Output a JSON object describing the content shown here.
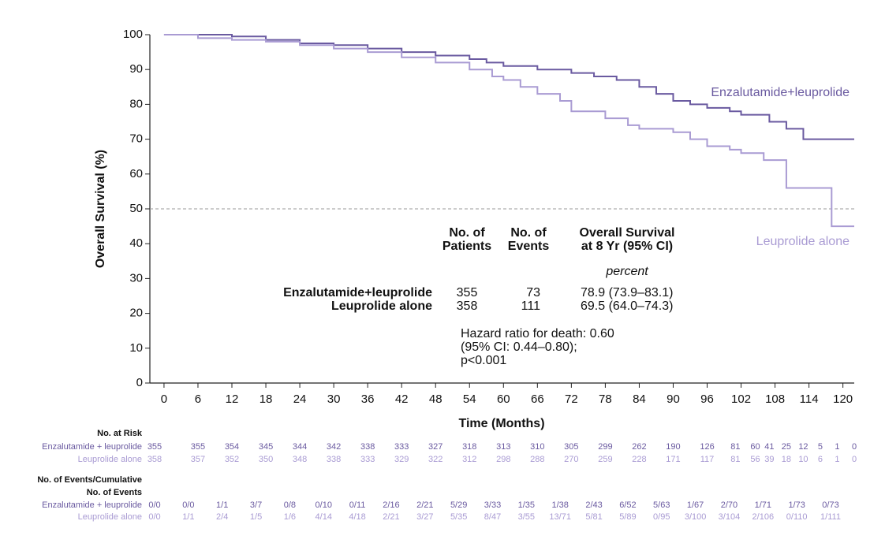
{
  "chart_data": {
    "type": "line",
    "step": true,
    "y_label": "Overall Survival (%)",
    "x_label": "Time (Months)",
    "xlim": [
      -2.5,
      122
    ],
    "ylim": [
      0,
      100
    ],
    "xticks": [
      0,
      6,
      12,
      18,
      24,
      30,
      36,
      42,
      48,
      54,
      60,
      66,
      72,
      78,
      84,
      90,
      96,
      102,
      108,
      114,
      120
    ],
    "yticks": [
      0,
      10,
      20,
      30,
      40,
      50,
      60,
      70,
      80,
      90,
      100
    ],
    "reference_line": 50,
    "series": [
      {
        "name": "Enzalutamide+leuprolide",
        "color": "#6a5aa0",
        "x": [
          0,
          12,
          18,
          24,
          30,
          36,
          42,
          48,
          54,
          57,
          60,
          66,
          72,
          76,
          80,
          84,
          87,
          90,
          93,
          96,
          100,
          102,
          107,
          110,
          113,
          122
        ],
        "values": [
          100,
          99.5,
          98.5,
          97.5,
          97,
          96,
          95,
          94,
          93,
          92,
          91,
          90,
          89,
          88,
          87,
          85,
          83,
          81,
          80,
          79,
          78,
          77,
          75,
          73,
          70,
          70
        ]
      },
      {
        "name": "Leuprolide alone",
        "color": "#a99bd3",
        "x": [
          0,
          6,
          12,
          18,
          24,
          30,
          36,
          42,
          48,
          54,
          58,
          60,
          63,
          66,
          70,
          72,
          78,
          82,
          84,
          90,
          93,
          96,
          100,
          102,
          106,
          110,
          118,
          122
        ],
        "values": [
          100,
          99,
          98.5,
          98,
          97,
          96,
          95,
          93.5,
          92,
          90,
          88,
          87,
          85,
          83,
          81,
          78,
          76,
          74,
          73,
          72,
          70,
          68,
          67,
          66,
          64,
          56,
          45,
          45
        ]
      }
    ],
    "summary_table": {
      "headers": [
        [
          "No. of",
          "Patients"
        ],
        [
          "No. of",
          "Events"
        ],
        [
          "Overall Survival",
          "at 8 Yr (95% CI)"
        ]
      ],
      "unit": "percent",
      "rows": [
        [
          "Enzalutamide+leuprolide",
          355,
          73,
          "78.9 (73.9–83.1)"
        ],
        [
          "Leuprolide alone",
          358,
          111,
          "69.5 (64.0–74.3)"
        ]
      ]
    },
    "annotation": [
      "Hazard ratio for death: 0.60",
      "(95% CI: 0.44–0.80);",
      "p<0.001"
    ],
    "risk_table": {
      "title": "No. at Risk",
      "times": [
        0,
        6,
        12,
        18,
        24,
        30,
        36,
        42,
        48,
        54,
        60,
        66,
        72,
        78,
        84,
        90,
        96,
        101,
        104.5,
        107,
        110,
        113,
        116,
        119,
        122
      ],
      "rows": [
        {
          "label": "Enzalutamide + leuprolide",
          "color": "#6a5aa0",
          "values": [
            355,
            355,
            354,
            345,
            344,
            342,
            338,
            333,
            327,
            318,
            313,
            310,
            305,
            299,
            262,
            190,
            126,
            81,
            60,
            41,
            25,
            12,
            5,
            1,
            0
          ]
        },
        {
          "label": "Leuprolide alone",
          "color": "#a99bd3",
          "values": [
            358,
            357,
            352,
            350,
            348,
            338,
            333,
            329,
            322,
            312,
            298,
            288,
            270,
            259,
            228,
            171,
            117,
            81,
            56,
            39,
            18,
            10,
            6,
            1,
            0
          ]
        }
      ]
    },
    "events_table": {
      "title": [
        "No. of Events/Cumulative",
        "No. of Events"
      ],
      "rows": [
        {
          "label": "Enzalutamide + leuprolide",
          "color": "#6a5aa0",
          "values": [
            "0/0",
            "0/0",
            "1/1",
            "3/7",
            "0/8",
            "0/10",
            "0/11",
            "2/16",
            "2/21",
            "5/29",
            "3/33",
            "1/35",
            "1/38",
            "2/43",
            "6/52",
            "5/63",
            "1/67",
            "2/70",
            "1/71",
            "1/73",
            "0/73"
          ]
        },
        {
          "label": "Leuprolide alone",
          "color": "#a99bd3",
          "values": [
            "0/0",
            "1/1",
            "2/4",
            "1/5",
            "1/6",
            "4/14",
            "4/18",
            "2/21",
            "3/27",
            "5/35",
            "8/47",
            "3/55",
            "13/71",
            "5/81",
            "5/89",
            "0/95",
            "3/100",
            "3/104",
            "2/106",
            "0/110",
            "1/111"
          ]
        }
      ]
    }
  }
}
